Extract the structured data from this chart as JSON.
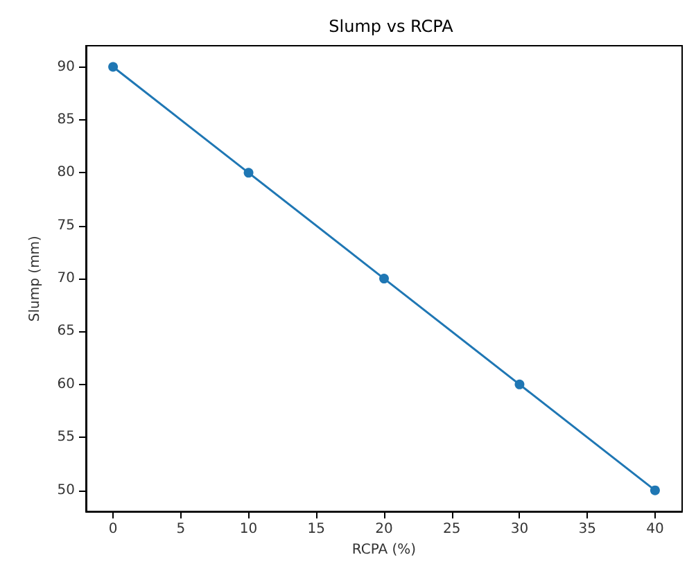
{
  "chart_data": {
    "type": "line",
    "title": "Slump vs RCPA",
    "xlabel": "RCPA (%)",
    "ylabel": "Slump (mm)",
    "x": [
      0,
      10,
      20,
      30,
      40
    ],
    "series": [
      {
        "color": "#1f77b4",
        "values": [
          90,
          80,
          70,
          60,
          50
        ]
      }
    ],
    "xlim": [
      -2,
      42
    ],
    "xticks": [
      0,
      5,
      10,
      15,
      20,
      25,
      30,
      35,
      40
    ],
    "ylim": [
      48,
      92
    ],
    "yticks": [
      50,
      55,
      60,
      65,
      70,
      75,
      80,
      85,
      90
    ],
    "grid": false,
    "marker": "circle",
    "line_style": "solid"
  }
}
